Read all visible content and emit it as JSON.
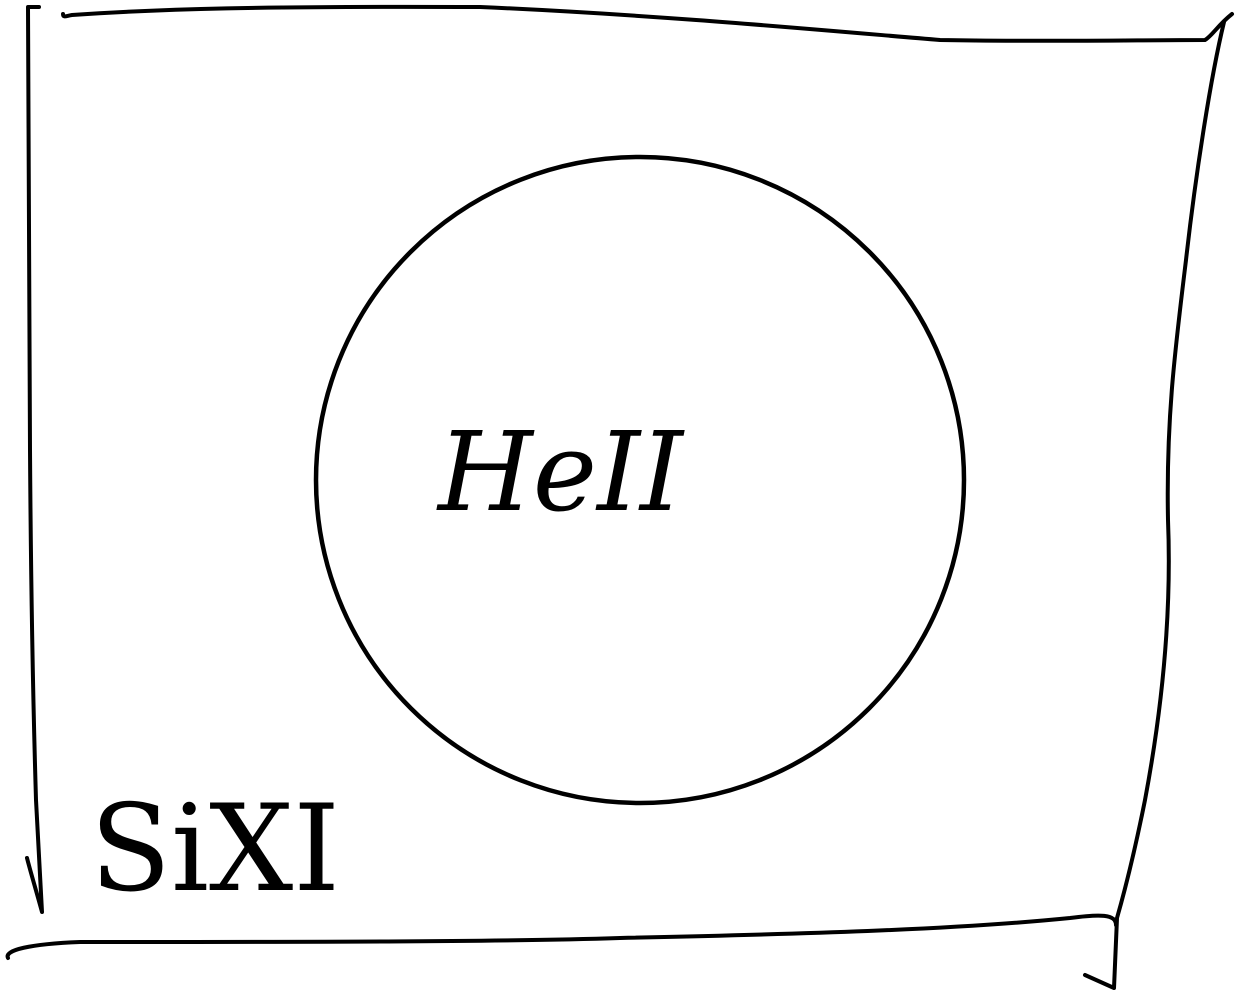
{
  "diagram": {
    "outer_region": {
      "label": "SiXI"
    },
    "inner_region": {
      "label": "HeII"
    },
    "ink_color": "#000000",
    "background_color": "#ffffff"
  }
}
